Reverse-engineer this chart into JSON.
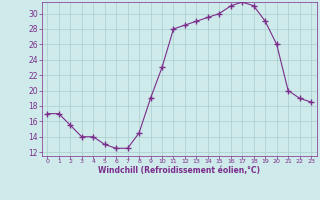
{
  "x": [
    0,
    1,
    2,
    3,
    4,
    5,
    6,
    7,
    8,
    9,
    10,
    11,
    12,
    13,
    14,
    15,
    16,
    17,
    18,
    19,
    20,
    21,
    22,
    23
  ],
  "y": [
    17,
    17,
    15.5,
    14,
    14,
    13,
    12.5,
    12.5,
    14.5,
    19,
    23,
    28,
    28.5,
    29,
    29.5,
    30,
    31,
    31.5,
    31,
    29,
    26,
    20,
    19,
    18.5
  ],
  "line_color": "#7b2d8b",
  "marker": "+",
  "marker_size": 4,
  "bg_color": "#ceeaea",
  "grid_color": "#aacece",
  "xlabel": "Windchill (Refroidissement éolien,°C)",
  "xlabel_color": "#7b2d8b",
  "tick_color": "#7b2d8b",
  "spine_color": "#7b2d8b",
  "xlim": [
    -0.5,
    23.5
  ],
  "ylim": [
    11.5,
    31.5
  ],
  "yticks": [
    12,
    14,
    16,
    18,
    20,
    22,
    24,
    26,
    28,
    30
  ],
  "xticks": [
    0,
    1,
    2,
    3,
    4,
    5,
    6,
    7,
    8,
    9,
    10,
    11,
    12,
    13,
    14,
    15,
    16,
    17,
    18,
    19,
    20,
    21,
    22,
    23
  ]
}
